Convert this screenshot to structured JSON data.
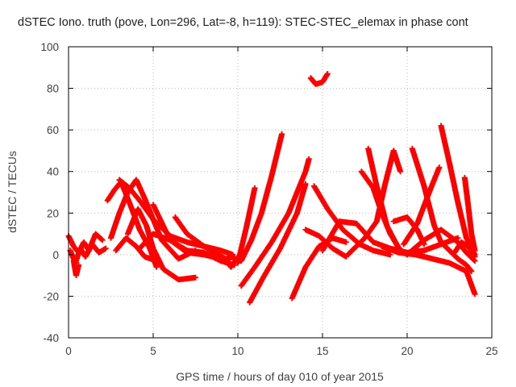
{
  "chart_data": {
    "type": "scatter",
    "title": "dSTEC Iono. truth (pove, Lon=296, Lat=-8, h=119): STEC-STEC_elemax in phase cont",
    "xlabel": "GPS time / hours of day 010 of year 2015",
    "ylabel": "dSTEC  / TECUs",
    "xlim": [
      0,
      25
    ],
    "ylim": [
      -40,
      100
    ],
    "xticks": [
      "0",
      "5",
      "10",
      "15",
      "20",
      "25"
    ],
    "yticks": [
      "100",
      "80",
      "60",
      "40",
      "20",
      "0",
      "-20",
      "-40"
    ],
    "grid": true,
    "legend": "none",
    "marker": "plus",
    "color": "#ff0000",
    "series": [
      {
        "x": [
          0.0,
          0.3,
          0.6,
          0.9,
          1.2,
          1.6,
          2.0
        ],
        "y": [
          9,
          4,
          1,
          6,
          2,
          10,
          7
        ]
      },
      {
        "x": [
          0.1,
          0.4,
          0.7,
          1.0,
          1.4,
          1.8,
          2.2
        ],
        "y": [
          2,
          -4,
          3,
          -1,
          5,
          1,
          3
        ]
      },
      {
        "x": [
          0.3,
          0.45,
          0.6
        ],
        "y": [
          -3,
          -10,
          -5
        ]
      },
      {
        "x": [
          2.3,
          2.7,
          3.1,
          3.6,
          4.2,
          4.8,
          5.2
        ],
        "y": [
          26,
          31,
          35,
          25,
          12,
          3,
          -6
        ]
      },
      {
        "x": [
          2.5,
          3.0,
          3.5,
          4.0,
          4.5,
          5.5,
          6.5,
          7.5
        ],
        "y": [
          8,
          20,
          30,
          36,
          27,
          7,
          -2,
          2
        ]
      },
      {
        "x": [
          3.0,
          3.6,
          4.2,
          5.0,
          6.0,
          7.0,
          8.0,
          9.0,
          9.7
        ],
        "y": [
          36,
          32,
          26,
          17,
          9,
          6,
          4,
          2,
          0
        ]
      },
      {
        "x": [
          3.5,
          4.1,
          4.6,
          5.0,
          5.6,
          6.5,
          7.5
        ],
        "y": [
          10,
          22,
          14,
          3,
          -7,
          -12,
          -11
        ]
      },
      {
        "x": [
          2.8,
          3.4,
          4.0,
          4.5,
          5.2
        ],
        "y": [
          2,
          8,
          4,
          -1,
          -3
        ]
      },
      {
        "x": [
          4.2,
          5.0,
          6.0,
          7.0,
          8.0,
          9.0,
          9.8
        ],
        "y": [
          3,
          10,
          7,
          2,
          1,
          -3,
          -5
        ]
      },
      {
        "x": [
          5.0,
          6.0,
          7.0,
          8.0,
          9.0,
          9.7
        ],
        "y": [
          24,
          7,
          1,
          0,
          -2,
          -5
        ]
      },
      {
        "x": [
          6.3,
          7.0,
          8.0,
          8.8,
          9.3,
          9.8
        ],
        "y": [
          18,
          10,
          4,
          0,
          -2,
          -1
        ]
      },
      {
        "x": [
          9.2,
          9.6,
          10.0
        ],
        "y": [
          -2,
          -6,
          -1
        ]
      },
      {
        "x": [
          10.0,
          10.5,
          11.0
        ],
        "y": [
          -4,
          13,
          32
        ]
      },
      {
        "x": [
          10.2,
          10.8,
          11.4,
          12.0,
          12.6
        ],
        "y": [
          -3,
          7,
          20,
          38,
          58
        ]
      },
      {
        "x": [
          10.2,
          11.0,
          12.0,
          13.0,
          14.0,
          14.2
        ],
        "y": [
          -15,
          -6,
          6,
          20,
          40,
          46
        ]
      },
      {
        "x": [
          10.7,
          11.5,
          12.5,
          13.5,
          14.0
        ],
        "y": [
          -23,
          -11,
          3,
          20,
          34
        ]
      },
      {
        "x": [
          13.2,
          14.0,
          14.8,
          15.6,
          16.4
        ],
        "y": [
          -21,
          -6,
          4,
          8,
          6
        ]
      },
      {
        "x": [
          14.0,
          14.8,
          15.6,
          16.4
        ],
        "y": [
          12,
          9,
          3,
          -1
        ]
      },
      {
        "x": [
          14.3,
          14.6,
          15.0,
          15.3
        ],
        "y": [
          85,
          82,
          83,
          87
        ]
      },
      {
        "x": [
          14.5,
          15.3,
          16.2,
          17.2,
          18.0,
          19.0
        ],
        "y": [
          33,
          22,
          12,
          5,
          2,
          0
        ]
      },
      {
        "x": [
          15.0,
          16.0,
          17.0,
          18.0,
          19.0,
          20.0,
          21.0,
          22.0,
          23.0
        ],
        "y": [
          2,
          16,
          15,
          6,
          3,
          1,
          2,
          5,
          8
        ]
      },
      {
        "x": [
          16.5,
          17.5,
          18.2,
          18.7,
          19.2,
          19.6
        ],
        "y": [
          0,
          8,
          16,
          34,
          50,
          40
        ]
      },
      {
        "x": [
          17.3,
          18.0,
          18.5,
          19.0,
          19.6
        ],
        "y": [
          40,
          32,
          20,
          10,
          2
        ]
      },
      {
        "x": [
          17.7,
          18.2,
          18.8,
          19.5,
          20.0
        ],
        "y": [
          51,
          33,
          14,
          3,
          0
        ]
      },
      {
        "x": [
          19.2,
          20.0,
          20.6,
          21.0
        ],
        "y": [
          16,
          18,
          12,
          5
        ]
      },
      {
        "x": [
          20.3,
          21.0,
          21.6,
          22.0,
          22.5,
          23.0,
          23.5,
          23.8
        ],
        "y": [
          51,
          33,
          14,
          6,
          2,
          -2,
          -5,
          -8
        ]
      },
      {
        "x": [
          20.0,
          21.0,
          22.0,
          23.0,
          23.5,
          24.0
        ],
        "y": [
          0,
          7,
          12,
          6,
          1,
          -3
        ]
      },
      {
        "x": [
          18.5,
          19.5,
          20.5,
          21.5,
          22.5,
          23.5,
          24.0
        ],
        "y": [
          4,
          1,
          0,
          -2,
          -4,
          -8,
          -19
        ]
      },
      {
        "x": [
          19.8,
          20.6,
          21.4,
          21.9
        ],
        "y": [
          5,
          15,
          32,
          42
        ]
      },
      {
        "x": [
          22.0,
          22.5,
          23.0,
          23.5,
          24.0
        ],
        "y": [
          62,
          44,
          25,
          8,
          0
        ]
      },
      {
        "x": [
          22.8,
          23.2,
          23.6,
          24.0
        ],
        "y": [
          1,
          6,
          4,
          -1
        ]
      },
      {
        "x": [
          23.4,
          23.6,
          23.8,
          24.0
        ],
        "y": [
          37,
          24,
          10,
          2
        ]
      }
    ]
  }
}
